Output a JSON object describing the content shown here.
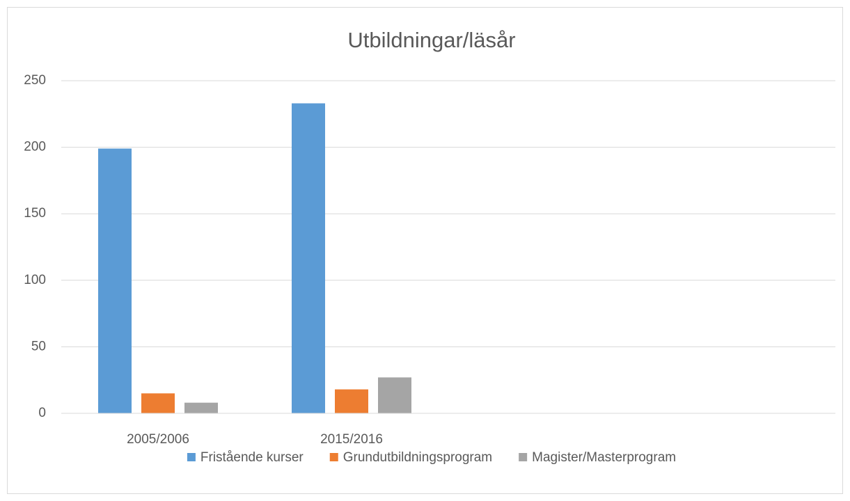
{
  "chart_data": {
    "type": "bar",
    "title": "Utbildningar/läsår",
    "categories": [
      "2005/2006",
      "2015/2016",
      null,
      null
    ],
    "series": [
      {
        "name": "Fristående kurser",
        "color": "#5b9bd5",
        "values": [
          199,
          233,
          null,
          null
        ]
      },
      {
        "name": "Grundutbildningsprogram",
        "color": "#ed7d31",
        "values": [
          15,
          18,
          null,
          null
        ]
      },
      {
        "name": "Magister/Masterprogram",
        "color": "#a5a5a5",
        "values": [
          8,
          27,
          null,
          null
        ]
      }
    ],
    "ylim": [
      0,
      250
    ],
    "yticks": [
      0,
      50,
      100,
      150,
      200,
      250
    ],
    "grid": true,
    "legend": "bottom"
  }
}
